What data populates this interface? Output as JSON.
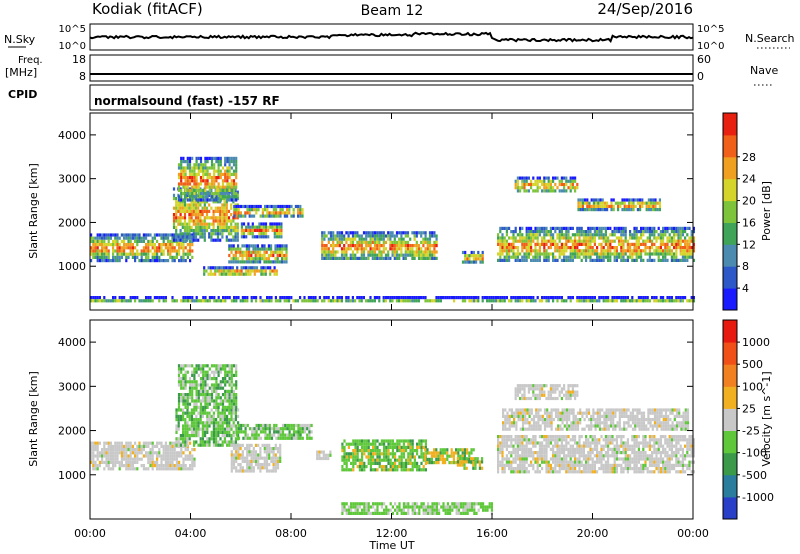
{
  "header": {
    "radar": "Kodiak (fitACF)",
    "beam": "Beam 12",
    "date": "24/Sep/2016"
  },
  "strip_labels": {
    "nsky": "N.Sky",
    "nsky_ticks": [
      "10^5",
      "10^0"
    ],
    "nsearch": "N.Search",
    "nsearch_ticks": [
      "10^5",
      "10^0"
    ],
    "freq": "Freq.",
    "freq_unit": "[MHz]",
    "freq_ticks": [
      "18",
      "8"
    ],
    "nave": "Nave",
    "nave_ticks": [
      "60",
      "0"
    ],
    "cpid": "CPID",
    "cpid_text": "normalsound (fast) -157 RF"
  },
  "chart_data": [
    {
      "type": "heatmap",
      "name": "power",
      "ylabel": "Slant Range [km]",
      "xlabel": "",
      "y_ticks": [
        1000,
        2000,
        3000,
        4000
      ],
      "ylim": [
        0,
        4500
      ],
      "x_ticks": [
        "00:00",
        "04:00",
        "08:00",
        "12:00",
        "16:00",
        "20:00",
        "00:00"
      ],
      "xlim_hours": [
        0,
        24
      ],
      "colorbar_label": "Power [dB]",
      "colorbar_ticks": [
        "4",
        "8",
        "12",
        "16",
        "20",
        "24",
        "28"
      ],
      "colorbar_colors": [
        "#1a1aff",
        "#2d58c8",
        "#4b8bb0",
        "#3fa358",
        "#7dc43b",
        "#d4d42a",
        "#f0a020",
        "#f06018",
        "#e82010"
      ],
      "bands": [
        {
          "t0": 0.0,
          "t1": 4.1,
          "r0": 1150,
          "r1": 1750
        },
        {
          "t0": 3.3,
          "t1": 5.9,
          "r0": 1600,
          "r1": 2800
        },
        {
          "t0": 3.5,
          "t1": 5.8,
          "r0": 2500,
          "r1": 3500
        },
        {
          "t0": 4.5,
          "t1": 7.4,
          "r0": 800,
          "r1": 1000
        },
        {
          "t0": 5.5,
          "t1": 7.8,
          "r0": 1100,
          "r1": 1500
        },
        {
          "t0": 6.0,
          "t1": 7.6,
          "r0": 1700,
          "r1": 2000
        },
        {
          "t0": 5.7,
          "t1": 8.5,
          "r0": 2150,
          "r1": 2400
        },
        {
          "t0": 9.2,
          "t1": 13.8,
          "r0": 1150,
          "r1": 1800
        },
        {
          "t0": 14.8,
          "t1": 15.6,
          "r0": 1100,
          "r1": 1350
        },
        {
          "t0": 16.2,
          "t1": 24.0,
          "r0": 1100,
          "r1": 1900
        },
        {
          "t0": 16.9,
          "t1": 19.4,
          "r0": 2700,
          "r1": 3050
        },
        {
          "t0": 19.4,
          "t1": 22.7,
          "r0": 2300,
          "r1": 2550
        },
        {
          "t0": 0.0,
          "t1": 24.0,
          "r0": 180,
          "r1": 320
        }
      ]
    },
    {
      "type": "heatmap",
      "name": "velocity",
      "ylabel": "Slant Range [km]",
      "xlabel": "Time UT",
      "y_ticks": [
        1000,
        2000,
        3000,
        4000
      ],
      "ylim": [
        0,
        4500
      ],
      "x_ticks": [
        "00:00",
        "04:00",
        "08:00",
        "12:00",
        "16:00",
        "20:00",
        "00:00"
      ],
      "xlim_hours": [
        0,
        24
      ],
      "colorbar_label": "Velocity [m s^-1]",
      "colorbar_ticks": [
        "1000",
        "500",
        "100",
        "25",
        "-25",
        "-100",
        "-500",
        "-1000"
      ],
      "colorbar_colors": [
        "#2a3fc8",
        "#2a7d9c",
        "#3a9a4a",
        "#5ec83a",
        "#c8c8c8",
        "#f0b020",
        "#f08020",
        "#f05018",
        "#e81a10"
      ],
      "bands": [
        {
          "t0": 0.0,
          "t1": 4.2,
          "r0": 1150,
          "r1": 1750
        },
        {
          "t0": 3.4,
          "t1": 5.9,
          "r0": 1700,
          "r1": 2500
        },
        {
          "t0": 3.5,
          "t1": 5.8,
          "r0": 2500,
          "r1": 3500
        },
        {
          "t0": 5.6,
          "t1": 7.6,
          "r0": 1100,
          "r1": 1700
        },
        {
          "t0": 5.8,
          "t1": 8.8,
          "r0": 1800,
          "r1": 2150
        },
        {
          "t0": 9.0,
          "t1": 9.6,
          "r0": 1350,
          "r1": 1550
        },
        {
          "t0": 10.0,
          "t1": 13.4,
          "r0": 1100,
          "r1": 1800
        },
        {
          "t0": 13.3,
          "t1": 15.3,
          "r0": 1250,
          "r1": 1600
        },
        {
          "t0": 14.6,
          "t1": 15.6,
          "r0": 1150,
          "r1": 1400
        },
        {
          "t0": 16.2,
          "t1": 24.0,
          "r0": 1100,
          "r1": 1900
        },
        {
          "t0": 16.4,
          "t1": 23.8,
          "r0": 2000,
          "r1": 2500
        },
        {
          "t0": 16.9,
          "t1": 19.4,
          "r0": 2700,
          "r1": 3050
        },
        {
          "t0": 10.0,
          "t1": 16.0,
          "r0": 150,
          "r1": 380
        }
      ]
    }
  ]
}
